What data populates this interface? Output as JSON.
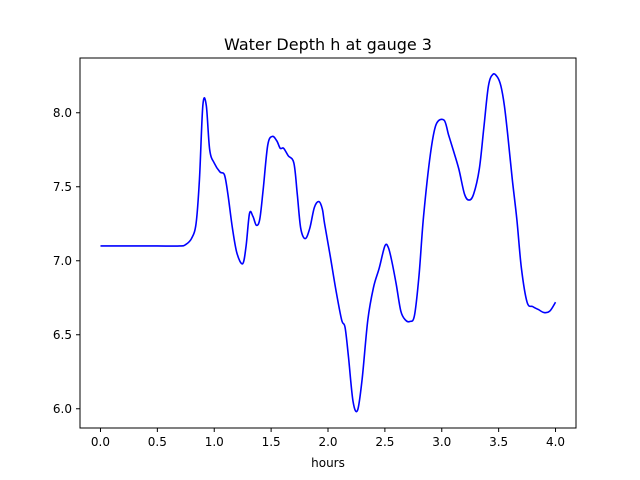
{
  "chart_data": {
    "type": "line",
    "title": "Water Depth h at gauge 3",
    "xlabel": "hours",
    "ylabel": "",
    "xlim": [
      -0.18,
      4.18
    ],
    "ylim": [
      5.87,
      8.37
    ],
    "xticks": [
      0.0,
      0.5,
      1.0,
      1.5,
      2.0,
      2.5,
      3.0,
      3.5,
      4.0
    ],
    "xtick_labels": [
      "0.0",
      "0.5",
      "1.0",
      "1.5",
      "2.0",
      "2.5",
      "3.0",
      "3.5",
      "4.0"
    ],
    "yticks": [
      6.0,
      6.5,
      7.0,
      7.5,
      8.0
    ],
    "ytick_labels": [
      "6.0",
      "6.5",
      "7.0",
      "7.5",
      "8.0"
    ],
    "grid": false,
    "series": [
      {
        "color": "#0000ff",
        "x": [
          0.0,
          0.3,
          0.5,
          0.7,
          0.75,
          0.8,
          0.84,
          0.87,
          0.9,
          0.93,
          0.96,
          1.0,
          1.05,
          1.09,
          1.12,
          1.16,
          1.2,
          1.25,
          1.28,
          1.31,
          1.34,
          1.37,
          1.4,
          1.43,
          1.47,
          1.51,
          1.55,
          1.58,
          1.61,
          1.65,
          1.7,
          1.73,
          1.76,
          1.8,
          1.84,
          1.88,
          1.92,
          1.95,
          1.97,
          2.02,
          2.07,
          2.12,
          2.15,
          2.18,
          2.22,
          2.26,
          2.3,
          2.35,
          2.4,
          2.45,
          2.5,
          2.53,
          2.56,
          2.6,
          2.64,
          2.68,
          2.72,
          2.76,
          2.8,
          2.84,
          2.9,
          2.95,
          3.02,
          3.06,
          3.1,
          3.15,
          3.2,
          3.24,
          3.28,
          3.33,
          3.37,
          3.41,
          3.45,
          3.49,
          3.52,
          3.55,
          3.58,
          3.62,
          3.66,
          3.7,
          3.75,
          3.8,
          3.85,
          3.9,
          3.95,
          4.0
        ],
        "y": [
          7.1,
          7.1,
          7.1,
          7.1,
          7.11,
          7.15,
          7.25,
          7.55,
          8.05,
          8.05,
          7.75,
          7.66,
          7.6,
          7.58,
          7.45,
          7.22,
          7.05,
          6.98,
          7.1,
          7.32,
          7.3,
          7.24,
          7.28,
          7.48,
          7.78,
          7.84,
          7.81,
          7.76,
          7.76,
          7.71,
          7.66,
          7.45,
          7.22,
          7.15,
          7.22,
          7.36,
          7.4,
          7.35,
          7.25,
          7.03,
          6.8,
          6.6,
          6.55,
          6.35,
          6.05,
          5.99,
          6.2,
          6.6,
          6.82,
          6.95,
          7.1,
          7.09,
          7.0,
          6.84,
          6.66,
          6.6,
          6.59,
          6.63,
          6.9,
          7.3,
          7.72,
          7.92,
          7.95,
          7.85,
          7.75,
          7.62,
          7.45,
          7.41,
          7.45,
          7.62,
          7.9,
          8.18,
          8.26,
          8.24,
          8.18,
          8.05,
          7.85,
          7.55,
          7.28,
          6.95,
          6.72,
          6.69,
          6.67,
          6.65,
          6.66,
          6.72
        ]
      }
    ]
  }
}
